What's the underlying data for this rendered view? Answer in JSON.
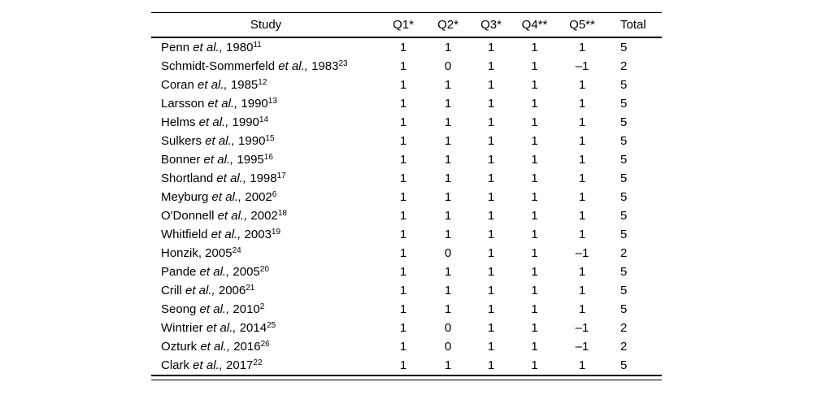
{
  "table": {
    "columns": [
      "Study",
      "Q1*",
      "Q2*",
      "Q3*",
      "Q4**",
      "Q5**",
      "Total"
    ],
    "rows": [
      {
        "study": {
          "before": "Penn ",
          "etal": "et al.,",
          "after": " 1980",
          "ref": "11"
        },
        "values": [
          "1",
          "1",
          "1",
          "1",
          "1",
          "5"
        ]
      },
      {
        "study": {
          "before": "Schmidt-Sommerfeld ",
          "etal": "et al.,",
          "after": " 1983",
          "ref": "23"
        },
        "values": [
          "1",
          "0",
          "1",
          "1",
          "–1",
          "2"
        ]
      },
      {
        "study": {
          "before": "Coran ",
          "etal": "et al.,",
          "after": " 1985",
          "ref": "12"
        },
        "values": [
          "1",
          "1",
          "1",
          "1",
          "1",
          "5"
        ]
      },
      {
        "study": {
          "before": "Larsson ",
          "etal": "et al.,",
          "after": " 1990",
          "ref": "13"
        },
        "values": [
          "1",
          "1",
          "1",
          "1",
          "1",
          "5"
        ]
      },
      {
        "study": {
          "before": "Helms ",
          "etal": "et al.,",
          "after": " 1990",
          "ref": "14"
        },
        "values": [
          "1",
          "1",
          "1",
          "1",
          "1",
          "5"
        ]
      },
      {
        "study": {
          "before": "Sulkers ",
          "etal": "et al.,",
          "after": " 1990",
          "ref": "15"
        },
        "values": [
          "1",
          "1",
          "1",
          "1",
          "1",
          "5"
        ]
      },
      {
        "study": {
          "before": "Bonner ",
          "etal": "et al.,",
          "after": " 1995",
          "ref": "16"
        },
        "values": [
          "1",
          "1",
          "1",
          "1",
          "1",
          "5"
        ]
      },
      {
        "study": {
          "before": "Shortland ",
          "etal": "et al.,",
          "after": " 1998",
          "ref": "17"
        },
        "values": [
          "1",
          "1",
          "1",
          "1",
          "1",
          "5"
        ]
      },
      {
        "study": {
          "before": "Meyburg ",
          "etal": "et al.,",
          "after": " 2002",
          "ref": "6"
        },
        "values": [
          "1",
          "1",
          "1",
          "1",
          "1",
          "5"
        ]
      },
      {
        "study": {
          "before": "O'Donnell ",
          "etal": "et al.,",
          "after": " 2002",
          "ref": "18"
        },
        "values": [
          "1",
          "1",
          "1",
          "1",
          "1",
          "5"
        ]
      },
      {
        "study": {
          "before": "Whitfield ",
          "etal": "et al.,",
          "after": " 2003",
          "ref": "19"
        },
        "values": [
          "1",
          "1",
          "1",
          "1",
          "1",
          "5"
        ]
      },
      {
        "study": {
          "before": "Honzik, 2005",
          "etal": "",
          "after": "",
          "ref": "24"
        },
        "values": [
          "1",
          "0",
          "1",
          "1",
          "–1",
          "2"
        ]
      },
      {
        "study": {
          "before": "Pande ",
          "etal": "et al.,",
          "after": " 2005",
          "ref": "20"
        },
        "values": [
          "1",
          "1",
          "1",
          "1",
          "1",
          "5"
        ]
      },
      {
        "study": {
          "before": "Crill ",
          "etal": "et al.,",
          "after": " 2006",
          "ref": "21"
        },
        "values": [
          "1",
          "1",
          "1",
          "1",
          "1",
          "5"
        ]
      },
      {
        "study": {
          "before": "Seong ",
          "etal": "et al.,",
          "after": " 2010",
          "ref": "2"
        },
        "values": [
          "1",
          "1",
          "1",
          "1",
          "1",
          "5"
        ]
      },
      {
        "study": {
          "before": "Wintrier ",
          "etal": "et al.,",
          "after": " 2014",
          "ref": "25"
        },
        "values": [
          "1",
          "0",
          "1",
          "1",
          "–1",
          "2"
        ]
      },
      {
        "study": {
          "before": "Ozturk ",
          "etal": "et al.,",
          "after": " 2016",
          "ref": "26"
        },
        "values": [
          "1",
          "0",
          "1",
          "1",
          "–1",
          "2"
        ]
      },
      {
        "study": {
          "before": "Clark ",
          "etal": "et al.,",
          "after": " 2017",
          "ref": "22"
        },
        "values": [
          "1",
          "1",
          "1",
          "1",
          "1",
          "5"
        ]
      }
    ]
  }
}
